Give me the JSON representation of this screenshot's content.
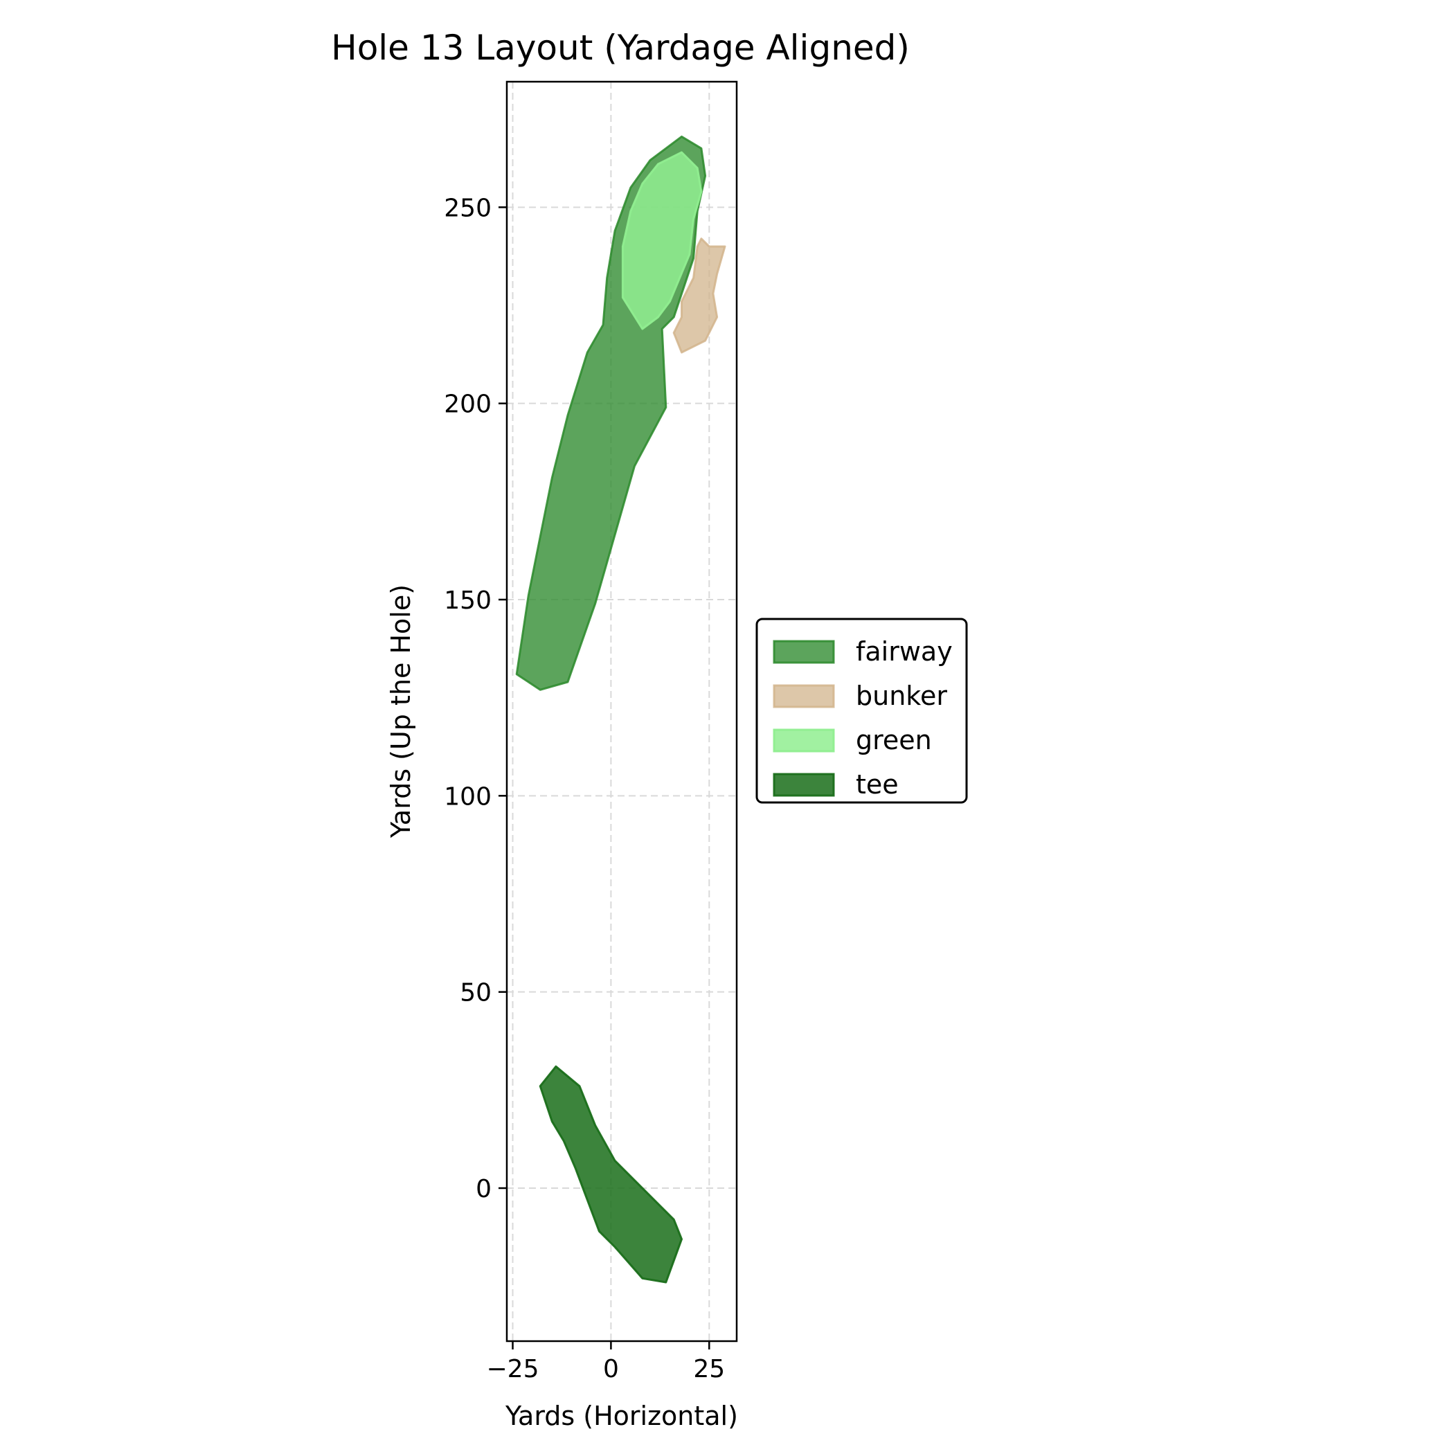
{
  "chart_data": {
    "type": "area",
    "title": "Hole 13 Layout (Yardage Aligned)",
    "xlabel": "Yards (Horizontal)",
    "ylabel": "Yards (Up the Hole)",
    "xlim": [
      -26.5,
      32
    ],
    "ylim": [
      -39,
      282
    ],
    "xticks": [
      {
        "value": -25,
        "label": "−25"
      },
      {
        "value": 0,
        "label": "0"
      },
      {
        "value": 25,
        "label": "25"
      }
    ],
    "yticks": [
      {
        "value": 0,
        "label": "0"
      },
      {
        "value": 50,
        "label": "50"
      },
      {
        "value": 100,
        "label": "100"
      },
      {
        "value": 150,
        "label": "150"
      },
      {
        "value": 200,
        "label": "200"
      },
      {
        "value": 250,
        "label": "250"
      }
    ],
    "grid": true,
    "legend_position": "center-right",
    "series": [
      {
        "name": "fairway",
        "fill": "#2e8b2e",
        "stroke": "#2e8b2e",
        "opacity": 0.78,
        "points": [
          [
            -24,
            131
          ],
          [
            -21,
            151
          ],
          [
            -18,
            166
          ],
          [
            -15,
            181
          ],
          [
            -11,
            197
          ],
          [
            -6,
            213
          ],
          [
            -2,
            220
          ],
          [
            -1,
            232
          ],
          [
            1,
            244
          ],
          [
            5,
            255
          ],
          [
            10,
            262
          ],
          [
            18,
            268
          ],
          [
            23,
            265
          ],
          [
            24,
            258
          ],
          [
            22,
            249
          ],
          [
            21,
            237
          ],
          [
            16,
            222
          ],
          [
            13,
            219
          ],
          [
            14,
            199
          ],
          [
            6,
            184
          ],
          [
            -4,
            149
          ],
          [
            -11,
            129
          ],
          [
            -18,
            127
          ]
        ]
      },
      {
        "name": "bunker",
        "fill": "#d2b48c",
        "stroke": "#d2b48c",
        "opacity": 0.75,
        "points": [
          [
            16,
            218
          ],
          [
            18,
            222
          ],
          [
            18,
            226
          ],
          [
            21,
            232
          ],
          [
            22,
            240
          ],
          [
            23,
            242
          ],
          [
            25,
            240
          ],
          [
            29,
            240
          ],
          [
            27,
            233
          ],
          [
            26,
            228
          ],
          [
            27,
            222
          ],
          [
            24,
            216
          ],
          [
            18,
            213
          ]
        ]
      },
      {
        "name": "green",
        "fill": "#90ee90",
        "stroke": "#90ee90",
        "opacity": 0.85,
        "points": [
          [
            3,
            240
          ],
          [
            5,
            249
          ],
          [
            8,
            256
          ],
          [
            12,
            261
          ],
          [
            18,
            264
          ],
          [
            22,
            260
          ],
          [
            23,
            254
          ],
          [
            21,
            247
          ],
          [
            20,
            238
          ],
          [
            15,
            226
          ],
          [
            12,
            222
          ],
          [
            8,
            219
          ],
          [
            3,
            227
          ]
        ]
      },
      {
        "name": "tee",
        "fill": "#1a6e1a",
        "stroke": "#1a6e1a",
        "opacity": 0.85,
        "points": [
          [
            -18,
            26
          ],
          [
            -14,
            31
          ],
          [
            -8,
            26
          ],
          [
            -4,
            16
          ],
          [
            1,
            7
          ],
          [
            7,
            1
          ],
          [
            12,
            -4
          ],
          [
            16,
            -8
          ],
          [
            18,
            -13
          ],
          [
            14,
            -24
          ],
          [
            8,
            -23
          ],
          [
            1,
            -15
          ],
          [
            -3,
            -11
          ],
          [
            -6,
            -3
          ],
          [
            -9,
            5
          ],
          [
            -12,
            12
          ],
          [
            -15,
            17
          ]
        ]
      }
    ]
  }
}
